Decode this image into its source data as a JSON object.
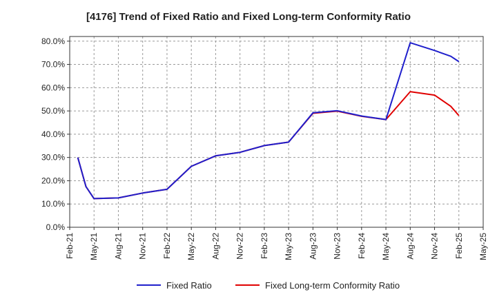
{
  "chart_data": {
    "type": "line",
    "title": "[4176]  Trend of Fixed Ratio and Fixed Long-term Conformity Ratio",
    "xlabel": "",
    "ylabel": "",
    "x_ticks": [
      "Feb-21",
      "May-21",
      "Aug-21",
      "Nov-21",
      "Feb-22",
      "May-22",
      "Aug-22",
      "Nov-22",
      "Feb-23",
      "May-23",
      "Aug-23",
      "Nov-23",
      "Feb-24",
      "May-24",
      "Aug-24",
      "Nov-24",
      "Feb-25",
      "May-25"
    ],
    "y_ticks": [
      "0.0%",
      "10.0%",
      "20.0%",
      "30.0%",
      "40.0%",
      "50.0%",
      "60.0%",
      "70.0%",
      "80.0%"
    ],
    "ylim": [
      0,
      82
    ],
    "grid": true,
    "legend_position": "bottom",
    "series": [
      {
        "name": "Fixed Ratio",
        "color": "#1f1fcc",
        "points": [
          [
            "Mar-21",
            30.0
          ],
          [
            "Apr-21",
            17.5
          ],
          [
            "May-21",
            12.3
          ],
          [
            "Aug-21",
            12.6
          ],
          [
            "Nov-21",
            14.7
          ],
          [
            "Feb-22",
            16.3
          ],
          [
            "May-22",
            26.2
          ],
          [
            "Aug-22",
            30.7
          ],
          [
            "Nov-22",
            32.2
          ],
          [
            "Feb-23",
            35.1
          ],
          [
            "May-23",
            36.6
          ],
          [
            "Aug-23",
            49.2
          ],
          [
            "Nov-23",
            50.1
          ],
          [
            "Feb-24",
            47.8
          ],
          [
            "May-24",
            46.3
          ],
          [
            "Aug-24",
            79.3
          ],
          [
            "Nov-24",
            76.0
          ],
          [
            "Jan-25",
            73.5
          ],
          [
            "Feb-25",
            71.2
          ]
        ]
      },
      {
        "name": "Fixed Long-term Conformity Ratio",
        "color": "#e00000",
        "points": [
          [
            "Mar-21",
            30.0
          ],
          [
            "Apr-21",
            17.5
          ],
          [
            "May-21",
            12.3
          ],
          [
            "Aug-21",
            12.6
          ],
          [
            "Nov-21",
            14.7
          ],
          [
            "Feb-22",
            16.3
          ],
          [
            "May-22",
            26.2
          ],
          [
            "Aug-22",
            30.7
          ],
          [
            "Nov-22",
            32.2
          ],
          [
            "Feb-23",
            35.1
          ],
          [
            "May-23",
            36.6
          ],
          [
            "Aug-23",
            49.0
          ],
          [
            "Nov-23",
            49.9
          ],
          [
            "Feb-24",
            47.7
          ],
          [
            "May-24",
            46.3
          ],
          [
            "Aug-24",
            58.3
          ],
          [
            "Nov-24",
            56.8
          ],
          [
            "Jan-25",
            52.0
          ],
          [
            "Feb-25",
            48.0
          ]
        ]
      }
    ]
  }
}
